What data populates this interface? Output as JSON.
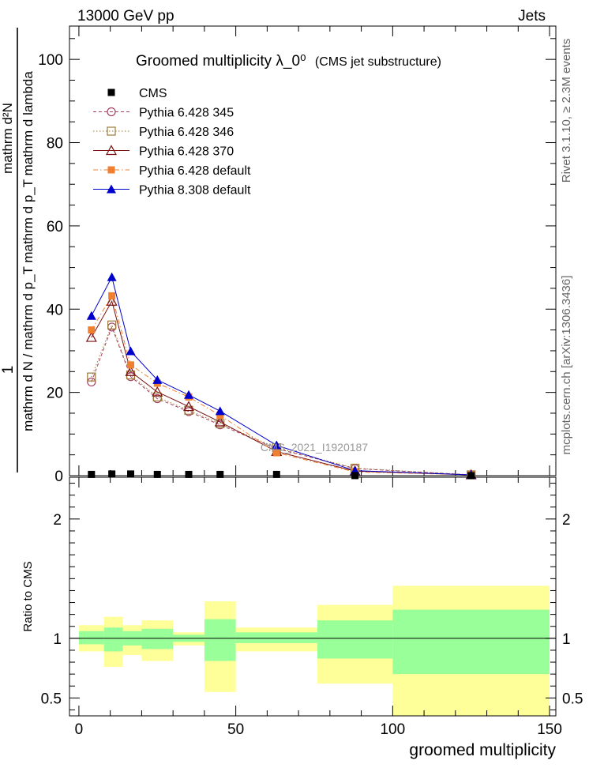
{
  "header": {
    "left": "13000 GeV pp",
    "right": "Jets"
  },
  "side_labels": {
    "rivet": "Rivet 3.1.10, ≥ 2.3M events",
    "mcplots": "mcplots.cern.ch [arXiv:1306.3436]"
  },
  "watermark": "CMS_2021_I1920187",
  "chart_data": {
    "type": "line",
    "title": "Groomed multiplicity  λ_0⁰",
    "title_note": "(CMS jet substructure)",
    "ylabel_top": "1",
    "ylabel_num": "mathrm d²N",
    "ylabel_den": "mathrm d N / mathrm d p_T mathrm d p_T mathrm d lambda",
    "xlabel": "groomed multiplicity",
    "xlim": [
      -3,
      152
    ],
    "ylim": [
      0,
      108
    ],
    "x_ticks": [
      "0",
      "50",
      "100",
      "150"
    ],
    "y_ticks": [
      "0",
      "20",
      "40",
      "60",
      "80",
      "100"
    ],
    "legend_position": "top-left",
    "x": [
      4,
      10.5,
      16.5,
      25,
      35,
      45,
      63,
      88,
      125
    ],
    "bin_edges": [
      0,
      8,
      14,
      20,
      30,
      40,
      50,
      76,
      100,
      150
    ],
    "series": [
      {
        "name": "CMS",
        "marker": "filled-square",
        "color": "#000000",
        "line": "none",
        "values": [
          0.3,
          0.4,
          0.4,
          0.3,
          0.3,
          0.3,
          0.3,
          0.02,
          0.01
        ]
      },
      {
        "name": "Pythia 6.428 345",
        "marker": "open-circle",
        "color": "#a44060",
        "line": "dashed",
        "values": [
          22.5,
          35.7,
          23.8,
          18.5,
          15.4,
          12.2,
          6.5,
          1.7,
          0.2
        ]
      },
      {
        "name": "Pythia 6.428 346",
        "marker": "open-square",
        "color": "#9b7a3a",
        "line": "dotted",
        "values": [
          23.7,
          36.2,
          24.2,
          18.9,
          15.7,
          12.5,
          6.7,
          1.8,
          0.2
        ]
      },
      {
        "name": "Pythia 6.428 370",
        "marker": "open-triangle",
        "color": "#7a1010",
        "line": "solid",
        "values": [
          33.2,
          41.9,
          25.0,
          20.1,
          16.6,
          12.9,
          5.8,
          1.1,
          0.2
        ]
      },
      {
        "name": "Pythia 6.428 default",
        "marker": "filled-square",
        "color": "#f08030",
        "line": "dashdot",
        "values": [
          35.0,
          43.2,
          26.6,
          22.2,
          18.9,
          14.5,
          5.5,
          0.9,
          0.2
        ]
      },
      {
        "name": "Pythia 8.308 default",
        "marker": "filled-triangle",
        "color": "#0000cc",
        "line": "solid",
        "values": [
          38.4,
          47.7,
          29.9,
          23.0,
          19.4,
          15.5,
          7.3,
          1.2,
          0.2
        ]
      }
    ],
    "ratio": {
      "ylabel": "Ratio to CMS",
      "ylim": [
        0.35,
        2.35
      ],
      "y_ticks": [
        "0.5",
        "1",
        "2"
      ],
      "reference": 1,
      "bands": [
        {
          "x0": 0,
          "x1": 8,
          "green_lo": 0.95,
          "green_hi": 1.06,
          "yellow_lo": 0.89,
          "yellow_hi": 1.11
        },
        {
          "x0": 8,
          "x1": 14,
          "green_lo": 0.89,
          "green_hi": 1.09,
          "yellow_lo": 0.76,
          "yellow_hi": 1.18
        },
        {
          "x0": 14,
          "x1": 20,
          "green_lo": 0.94,
          "green_hi": 1.06,
          "yellow_lo": 0.86,
          "yellow_hi": 1.11
        },
        {
          "x0": 20,
          "x1": 30,
          "green_lo": 0.91,
          "green_hi": 1.08,
          "yellow_lo": 0.81,
          "yellow_hi": 1.15
        },
        {
          "x0": 30,
          "x1": 40,
          "green_lo": 0.97,
          "green_hi": 1.03,
          "yellow_lo": 0.94,
          "yellow_hi": 1.05
        },
        {
          "x0": 40,
          "x1": 50,
          "green_lo": 0.81,
          "green_hi": 1.16,
          "yellow_lo": 0.55,
          "yellow_hi": 1.31
        },
        {
          "x0": 50,
          "x1": 76,
          "green_lo": 0.96,
          "green_hi": 1.05,
          "yellow_lo": 0.89,
          "yellow_hi": 1.09
        },
        {
          "x0": 76,
          "x1": 100,
          "green_lo": 0.83,
          "green_hi": 1.15,
          "yellow_lo": 0.62,
          "yellow_hi": 1.28
        },
        {
          "x0": 100,
          "x1": 150,
          "green_lo": 0.7,
          "green_hi": 1.24,
          "yellow_lo": 0.35,
          "yellow_hi": 1.44
        }
      ]
    }
  },
  "colors": {
    "band_green": "#99ff99",
    "band_yellow": "#ffff99"
  }
}
